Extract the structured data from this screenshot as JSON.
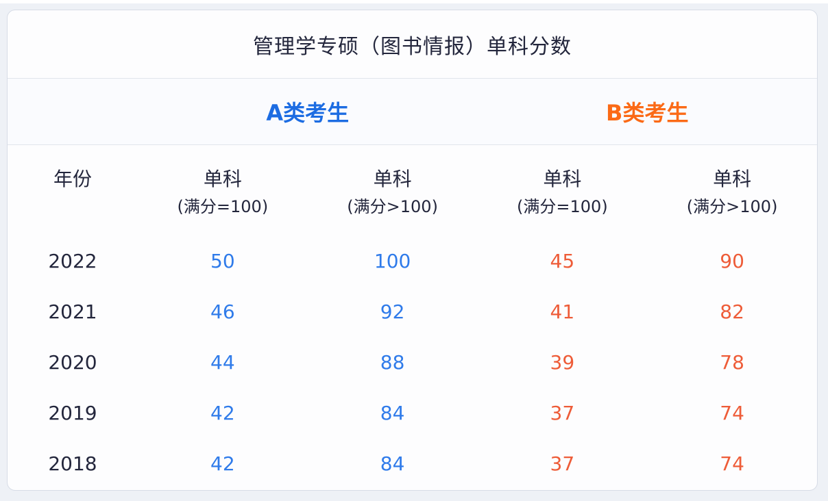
{
  "title": "管理学专硕（图书情报）单科分数",
  "groups": {
    "a": "A类考生",
    "b": "B类考生"
  },
  "table": {
    "year_header": "年份",
    "col_headers": [
      {
        "line1": "单科",
        "line2": "(满分=100)"
      },
      {
        "line1": "单科",
        "line2": "(满分>100)"
      },
      {
        "line1": "单科",
        "line2": "(满分=100)"
      },
      {
        "line1": "单科",
        "line2": "(满分>100)"
      }
    ],
    "rows": [
      {
        "year": "2022",
        "values": [
          "50",
          "100",
          "45",
          "90"
        ]
      },
      {
        "year": "2021",
        "values": [
          "46",
          "92",
          "41",
          "82"
        ]
      },
      {
        "year": "2020",
        "values": [
          "44",
          "88",
          "39",
          "78"
        ]
      },
      {
        "year": "2019",
        "values": [
          "42",
          "84",
          "37",
          "74"
        ]
      },
      {
        "year": "2018",
        "values": [
          "42",
          "84",
          "37",
          "74"
        ]
      }
    ]
  },
  "colors": {
    "group_a": "#1c6ce2",
    "group_b": "#fb6a16",
    "value_a": "#2f7bea",
    "value_b": "#ee5c38",
    "text_dark": "#23263c",
    "divider": "#e1e5ec",
    "card_border": "#d7dce6",
    "card_bg": "#fdfdfe",
    "page_bg": "#eef1f6"
  },
  "chart_data": {
    "type": "table",
    "title": "管理学专硕（图书情报）单科分数",
    "column_groups": [
      "",
      "A类考生",
      "A类考生",
      "B类考生",
      "B类考生"
    ],
    "columns": [
      "年份",
      "单科(满分=100)",
      "单科(满分>100)",
      "单科(满分=100)",
      "单科(满分>100)"
    ],
    "rows": [
      [
        "2022",
        50,
        100,
        45,
        90
      ],
      [
        "2021",
        46,
        92,
        41,
        82
      ],
      [
        "2020",
        44,
        88,
        39,
        78
      ],
      [
        "2019",
        42,
        84,
        37,
        74
      ],
      [
        "2018",
        42,
        84,
        37,
        74
      ]
    ]
  }
}
